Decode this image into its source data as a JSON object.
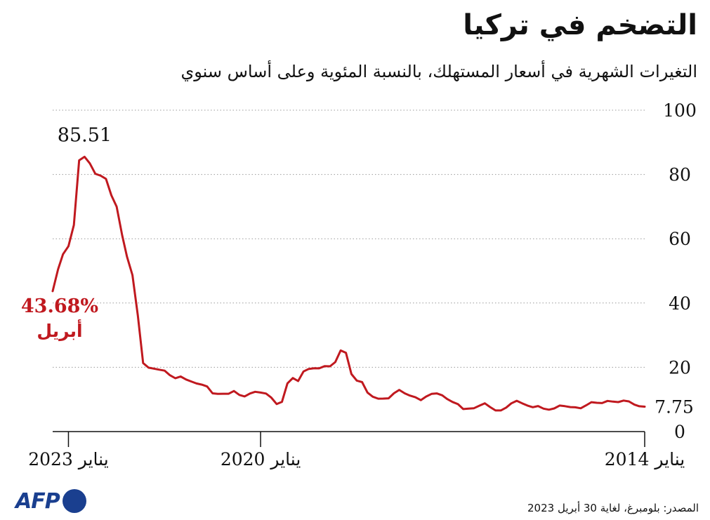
{
  "title": "التضخم في تركيا",
  "subtitle": "التغيرات الشهرية في أسعار المستهلك، بالنسبة المئوية وعلى أساس سنوي",
  "source": "المصدر: بلومبرغ، لغاية 30 أبريل 2023",
  "logo": {
    "text": "AFP",
    "color": "#1a3f8f"
  },
  "chart_data": {
    "type": "line",
    "title": "التضخم في تركيا",
    "ylabel": "",
    "xlabel": "",
    "ylim": [
      0,
      100
    ],
    "yticks": [
      "0",
      "20",
      "40",
      "60",
      "80",
      "100"
    ],
    "grid": true,
    "x_direction": "right-to-left",
    "xticks": [
      {
        "date": "2023-01",
        "label": "يناير 2023"
      },
      {
        "date": "2020-01",
        "label": "يناير 2020"
      },
      {
        "date": "2014-01",
        "label": "يناير 2014"
      }
    ],
    "line_color": "#c0191f",
    "series": [
      {
        "name": "",
        "x": [
          "2014-01",
          "2014-02",
          "2014-03",
          "2014-04",
          "2014-05",
          "2014-06",
          "2014-07",
          "2014-08",
          "2014-09",
          "2014-10",
          "2014-11",
          "2014-12",
          "2015-01",
          "2015-02",
          "2015-03",
          "2015-04",
          "2015-05",
          "2015-06",
          "2015-07",
          "2015-08",
          "2015-09",
          "2015-10",
          "2015-11",
          "2015-12",
          "2016-01",
          "2016-02",
          "2016-03",
          "2016-04",
          "2016-05",
          "2016-06",
          "2016-07",
          "2016-08",
          "2016-09",
          "2016-10",
          "2016-11",
          "2016-12",
          "2017-01",
          "2017-02",
          "2017-03",
          "2017-04",
          "2017-05",
          "2017-06",
          "2017-07",
          "2017-08",
          "2017-09",
          "2017-10",
          "2017-11",
          "2017-12",
          "2018-01",
          "2018-02",
          "2018-03",
          "2018-04",
          "2018-05",
          "2018-06",
          "2018-07",
          "2018-08",
          "2018-09",
          "2018-10",
          "2018-11",
          "2018-12",
          "2019-01",
          "2019-02",
          "2019-03",
          "2019-04",
          "2019-05",
          "2019-06",
          "2019-07",
          "2019-08",
          "2019-09",
          "2019-10",
          "2019-11",
          "2019-12",
          "2020-01",
          "2020-02",
          "2020-03",
          "2020-04",
          "2020-05",
          "2020-06",
          "2020-07",
          "2020-08",
          "2020-09",
          "2020-10",
          "2020-11",
          "2020-12",
          "2021-01",
          "2021-02",
          "2021-03",
          "2021-04",
          "2021-05",
          "2021-06",
          "2021-07",
          "2021-08",
          "2021-09",
          "2021-10",
          "2021-11",
          "2021-12",
          "2022-01",
          "2022-02",
          "2022-03",
          "2022-04",
          "2022-05",
          "2022-06",
          "2022-07",
          "2022-08",
          "2022-09",
          "2022-10",
          "2022-11",
          "2022-12",
          "2023-01",
          "2023-02",
          "2023-03",
          "2023-04"
        ],
        "values": [
          7.75,
          7.89,
          8.39,
          9.38,
          9.66,
          9.16,
          9.32,
          9.54,
          8.86,
          8.96,
          9.15,
          8.17,
          7.24,
          7.55,
          7.61,
          7.91,
          8.09,
          7.2,
          6.81,
          7.14,
          7.95,
          7.58,
          8.1,
          8.81,
          9.58,
          8.78,
          7.46,
          6.57,
          6.58,
          7.64,
          8.79,
          8.05,
          7.28,
          7.16,
          7.0,
          8.53,
          9.22,
          10.13,
          11.29,
          11.87,
          11.72,
          10.9,
          9.79,
          10.68,
          11.2,
          11.9,
          12.98,
          11.92,
          10.35,
          10.26,
          10.23,
          10.85,
          12.15,
          15.39,
          15.85,
          17.9,
          24.52,
          25.24,
          21.62,
          20.3,
          20.35,
          19.67,
          19.71,
          19.5,
          18.71,
          15.72,
          16.65,
          15.01,
          9.26,
          8.55,
          10.56,
          11.84,
          12.15,
          12.37,
          11.86,
          10.94,
          11.39,
          12.62,
          11.76,
          11.77,
          11.75,
          11.89,
          14.03,
          14.6,
          14.97,
          15.61,
          16.19,
          17.14,
          16.59,
          17.53,
          18.95,
          19.25,
          19.58,
          19.89,
          21.31,
          36.08,
          48.69,
          54.44,
          61.14,
          69.97,
          73.5,
          78.62,
          79.6,
          80.21,
          83.45,
          85.51,
          84.39,
          64.27,
          57.68,
          55.18,
          50.51,
          43.68
        ]
      }
    ],
    "annotations": [
      {
        "text": "85.51",
        "date": "2022-10",
        "value": 85.51
      },
      {
        "text": "43.68%",
        "sub": "أبريل",
        "date": "2023-04",
        "value": 43.68,
        "color": "#c0191f"
      },
      {
        "text": "7.75",
        "date": "2014-01",
        "value": 7.75
      }
    ]
  }
}
